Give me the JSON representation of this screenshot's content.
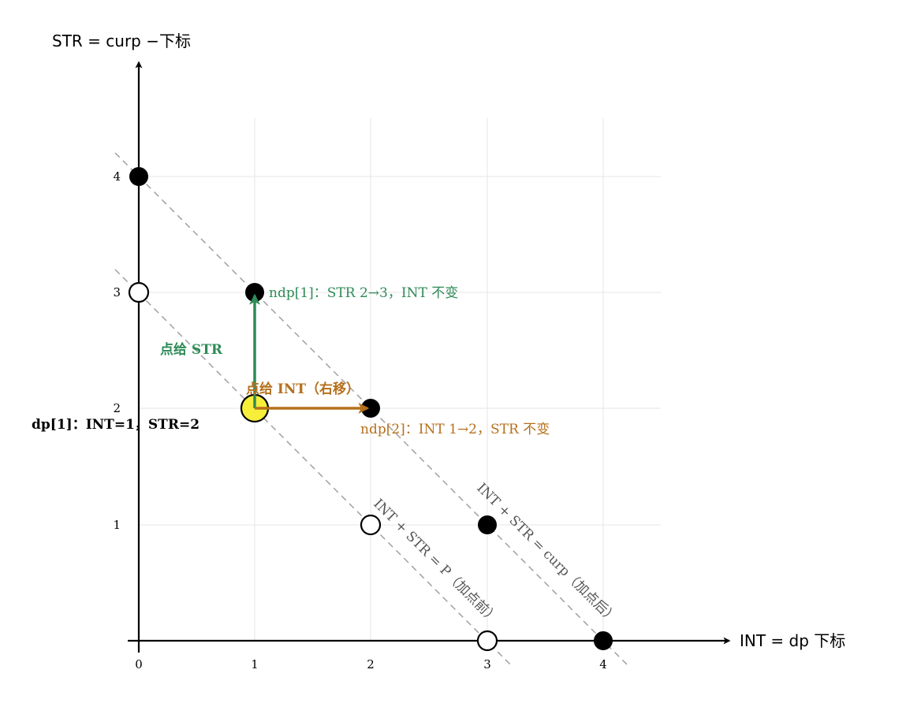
{
  "axes": {
    "x_title": "INT = dp 下标",
    "y_title": "STR = curp −下标",
    "x_ticks": [
      "0",
      "1",
      "2",
      "3",
      "4"
    ],
    "y_ticks": [
      "1",
      "2",
      "3",
      "4"
    ]
  },
  "lines": {
    "before": "INT + STR = P（加点前）",
    "after": "INT + STR = curp（加点后）"
  },
  "points": {
    "current_label": "dp[1]：INT=1，STR=2",
    "str_label": "ndp[1]：STR 2→3，INT 不变",
    "int_label": "ndp[2]：INT 1→2，STR 不变"
  },
  "arrows": {
    "str": "点给 STR",
    "int": "点给 INT（右移）"
  },
  "colors": {
    "str": "#2e8b57",
    "int": "#b5701c",
    "current_fill": "#f7ee3a",
    "dashed": "#9a9a9a"
  }
}
